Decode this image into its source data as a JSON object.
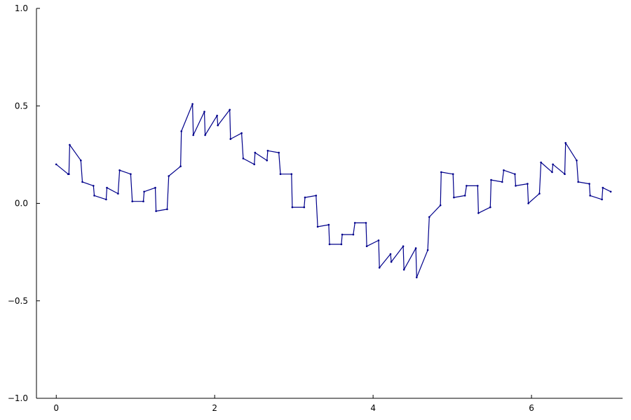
{
  "chart_data": {
    "type": "line",
    "title": "",
    "xlabel": "",
    "ylabel": "",
    "xlim": [
      -0.25,
      7.15
    ],
    "ylim": [
      -1.0,
      1.0
    ],
    "x_ticks": [
      0,
      2,
      4,
      6
    ],
    "x_tick_labels": [
      "0",
      "2",
      "4",
      "6"
    ],
    "y_ticks": [
      -1.0,
      -0.5,
      0.0,
      0.5,
      1.0
    ],
    "y_tick_labels": [
      "−1.0",
      "−0.5",
      "0.0",
      "0.5",
      "1.0"
    ],
    "grid": false,
    "legend": "none",
    "line_color": "#00008b",
    "series": [
      {
        "x": [
          0.0,
          0.15,
          0.16,
          0.17,
          0.31,
          0.33,
          0.47,
          0.48,
          0.63,
          0.64,
          0.78,
          0.8,
          0.94,
          0.96,
          1.1,
          1.11,
          1.25,
          1.26,
          1.4,
          1.42,
          1.57,
          1.58,
          1.72,
          1.73,
          1.87,
          1.88,
          2.03,
          2.04,
          2.19,
          2.2,
          2.34,
          2.36,
          2.5,
          2.51,
          2.66,
          2.67,
          2.81,
          2.83,
          2.97,
          2.98,
          3.13,
          3.14,
          3.28,
          3.3,
          3.44,
          3.45,
          3.6,
          3.61,
          3.75,
          3.77,
          3.91,
          3.92,
          4.07,
          4.08,
          4.22,
          4.23,
          4.38,
          4.39,
          4.54,
          4.55,
          4.69,
          4.71,
          4.85,
          4.86,
          5.01,
          5.02,
          5.16,
          5.18,
          5.32,
          5.33,
          5.48,
          5.49,
          5.63,
          5.65,
          5.79,
          5.8,
          5.95,
          5.96,
          6.1,
          6.12,
          6.26,
          6.27,
          6.42,
          6.43,
          6.57,
          6.59,
          6.73,
          6.74,
          6.89,
          6.9,
          7.0
        ],
        "y": [
          0.2,
          0.15,
          0.15,
          0.3,
          0.22,
          0.11,
          0.09,
          0.04,
          0.02,
          0.08,
          0.05,
          0.17,
          0.15,
          0.01,
          0.01,
          0.06,
          0.08,
          -0.04,
          -0.03,
          0.14,
          0.19,
          0.37,
          0.51,
          0.35,
          0.47,
          0.35,
          0.45,
          0.4,
          0.48,
          0.33,
          0.36,
          0.23,
          0.2,
          0.26,
          0.22,
          0.27,
          0.26,
          0.15,
          0.15,
          -0.02,
          -0.02,
          0.03,
          0.04,
          -0.12,
          -0.11,
          -0.21,
          -0.21,
          -0.16,
          -0.16,
          -0.1,
          -0.1,
          -0.22,
          -0.19,
          -0.33,
          -0.26,
          -0.3,
          -0.22,
          -0.34,
          -0.23,
          -0.38,
          -0.24,
          -0.07,
          -0.01,
          0.16,
          0.15,
          0.03,
          0.04,
          0.09,
          0.09,
          -0.05,
          -0.02,
          0.12,
          0.11,
          0.17,
          0.15,
          0.09,
          0.1,
          0.0,
          0.05,
          0.21,
          0.16,
          0.2,
          0.15,
          0.31,
          0.22,
          0.11,
          0.1,
          0.04,
          0.02,
          0.08,
          0.06
        ]
      }
    ]
  }
}
